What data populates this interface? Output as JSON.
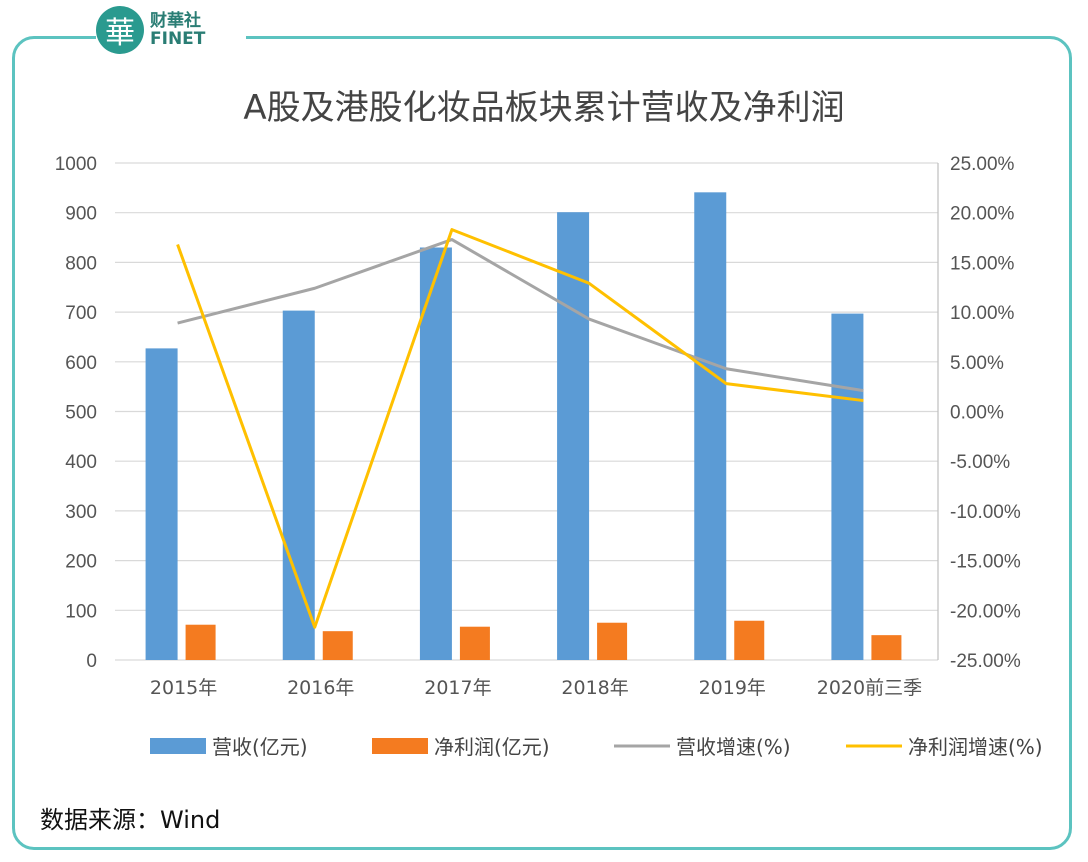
{
  "logo": {
    "text_cn": "财華社",
    "text_en": "FINET",
    "mark": "華"
  },
  "source": "数据来源：Wind",
  "colors": {
    "frame": "#5cc3c0",
    "revenue": "#5b9bd5",
    "profit": "#f47b20",
    "revenue_growth": "#a5a5a5",
    "profit_growth": "#ffc000"
  },
  "chart_data": {
    "type": "bar+line",
    "title": "A股及港股化妆品板块累计营收及净利润",
    "categories": [
      "2015年",
      "2016年",
      "2017年",
      "2018年",
      "2019年",
      "2020前三季"
    ],
    "y_left": {
      "ylim": [
        0,
        1000
      ],
      "ticks": [
        "0",
        "100",
        "200",
        "300",
        "400",
        "500",
        "600",
        "700",
        "800",
        "900",
        "1000"
      ]
    },
    "y_right": {
      "ylim": [
        -25,
        25
      ],
      "ticks": [
        "-25.00%",
        "-20.00%",
        "-15.00%",
        "-10.00%",
        "-5.00%",
        "0.00%",
        "5.00%",
        "10.00%",
        "15.00%",
        "20.00%",
        "25.00%"
      ]
    },
    "grid": true,
    "legend_position": "bottom",
    "series": [
      {
        "name": "营收(亿元)",
        "type": "bar",
        "axis": "left",
        "values": [
          627,
          703,
          830,
          901,
          941,
          697
        ]
      },
      {
        "name": "净利润(亿元)",
        "type": "bar",
        "axis": "left",
        "values": [
          71,
          58,
          67,
          75,
          79,
          50
        ]
      },
      {
        "name": "营收增速(%)",
        "type": "line",
        "axis": "right",
        "values": [
          8.9,
          12.4,
          17.3,
          9.3,
          4.3,
          2.1
        ]
      },
      {
        "name": "净利润增速(%)",
        "type": "line",
        "axis": "right",
        "values": [
          16.8,
          -21.7,
          18.3,
          12.9,
          2.8,
          1.1
        ]
      }
    ]
  }
}
